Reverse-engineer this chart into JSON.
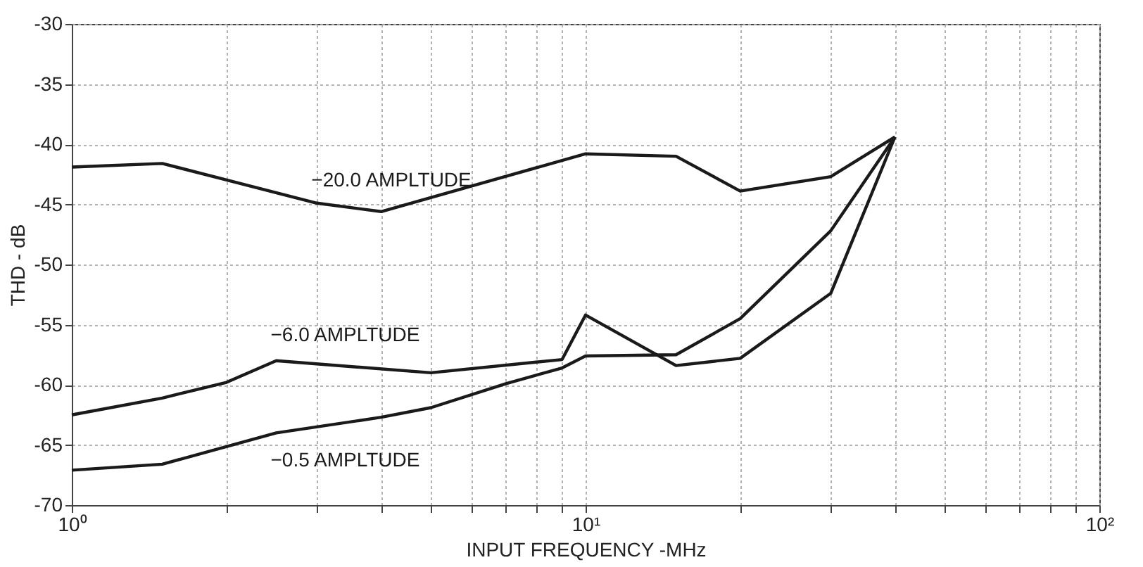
{
  "chart_data": {
    "type": "line",
    "xlabel": "INPUT FREQUENCY -MHz",
    "ylabel": "THD - dB",
    "log": "x",
    "grid": true,
    "line_style": "solid",
    "marker": "none",
    "xlim": [
      1,
      100
    ],
    "ylim": [
      -70,
      -30
    ],
    "xticks": [
      {
        "value": 1,
        "label": "10⁰"
      },
      {
        "value": 2,
        "label": null
      },
      {
        "value": 3,
        "label": null
      },
      {
        "value": 4,
        "label": null
      },
      {
        "value": 5,
        "label": null
      },
      {
        "value": 6,
        "label": null
      },
      {
        "value": 7,
        "label": null
      },
      {
        "value": 8,
        "label": null
      },
      {
        "value": 9,
        "label": null
      },
      {
        "value": 10,
        "label": "10¹"
      },
      {
        "value": 20,
        "label": null
      },
      {
        "value": 30,
        "label": null
      },
      {
        "value": 40,
        "label": null
      },
      {
        "value": 50,
        "label": null
      },
      {
        "value": 60,
        "label": null
      },
      {
        "value": 70,
        "label": null
      },
      {
        "value": 80,
        "label": null
      },
      {
        "value": 90,
        "label": null
      },
      {
        "value": 100,
        "label": "10²"
      }
    ],
    "yticks": [
      -70,
      -65,
      -60,
      -55,
      -50,
      -45,
      -40,
      -35,
      -30
    ],
    "series": [
      {
        "name": "−20.0 AMPLTUDE",
        "color": "#1a1a1a",
        "x": [
          1,
          1.5,
          3,
          4,
          10,
          15,
          20,
          30,
          40
        ],
        "values": [
          -41.9,
          -41.6,
          -44.9,
          -45.6,
          -40.8,
          -41.0,
          -43.9,
          -42.7,
          -39.4
        ]
      },
      {
        "name": "−6.0 AMPLTUDE",
        "color": "#1a1a1a",
        "x": [
          1,
          1.5,
          2,
          2.5,
          5,
          9,
          10,
          15,
          20,
          30,
          40
        ],
        "values": [
          -62.5,
          -61.1,
          -59.8,
          -58,
          -59,
          -57.9,
          -54.2,
          -58.4,
          -57.8,
          -52.4,
          -39.4
        ]
      },
      {
        "name": "−0.5 AMPLTUDE",
        "color": "#1a1a1a",
        "x": [
          1,
          1.5,
          2.5,
          4,
          5,
          7,
          9,
          10,
          15,
          20,
          30,
          40
        ],
        "values": [
          -67.1,
          -66.6,
          -64,
          -62.7,
          -61.9,
          -59.9,
          -58.6,
          -57.6,
          -57.5,
          -54.5,
          -47.2,
          -39.4
        ]
      }
    ]
  }
}
